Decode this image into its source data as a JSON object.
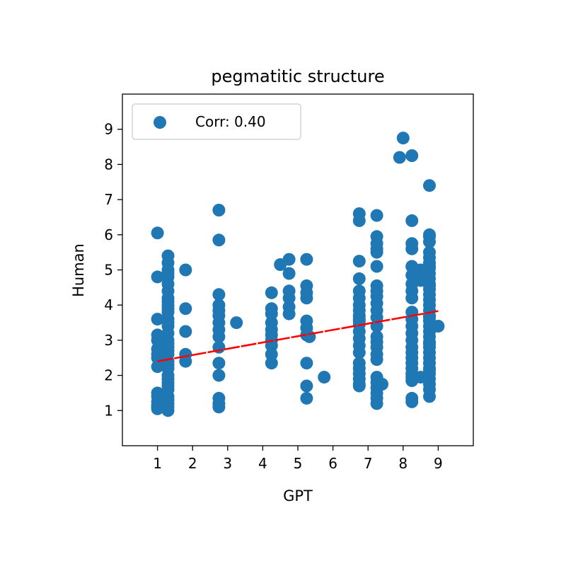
{
  "chart_data": {
    "type": "scatter",
    "title": "pegmatitic structure",
    "xlabel": "GPT",
    "ylabel": "Human",
    "xlim": [
      0,
      10
    ],
    "ylim": [
      0,
      10
    ],
    "xticks": [
      1,
      2,
      3,
      4,
      5,
      6,
      7,
      8,
      9
    ],
    "yticks": [
      1,
      2,
      3,
      4,
      5,
      6,
      7,
      8,
      9
    ],
    "grid": false,
    "legend": {
      "label": "Corr: 0.40",
      "placement": "top-left"
    },
    "colors": {
      "points": "#1f77b4",
      "trend": "#ff0000"
    },
    "trend_line": {
      "x": [
        1.0,
        9.0
      ],
      "y": [
        2.4,
        3.83
      ]
    },
    "points": {
      "x": [
        1.0,
        1.0,
        1.0,
        1.0,
        1.0,
        1.0,
        1.0,
        1.0,
        1.0,
        1.0,
        1.0,
        1.0,
        1.0,
        1.0,
        1.0,
        1.3,
        1.3,
        1.3,
        1.3,
        1.3,
        1.3,
        1.3,
        1.3,
        1.3,
        1.3,
        1.3,
        1.3,
        1.3,
        1.3,
        1.3,
        1.3,
        1.3,
        1.3,
        1.3,
        1.3,
        1.3,
        1.3,
        1.3,
        1.3,
        1.3,
        1.3,
        1.3,
        1.3,
        1.3,
        1.3,
        1.3,
        1.3,
        1.3,
        1.3,
        1.8,
        1.8,
        1.8,
        1.8,
        1.8,
        2.75,
        2.75,
        2.75,
        2.75,
        2.75,
        2.75,
        2.75,
        2.75,
        2.75,
        2.75,
        2.75,
        2.75,
        2.75,
        2.75,
        2.75,
        3.25,
        4.25,
        4.25,
        4.25,
        4.25,
        4.25,
        4.25,
        4.25,
        4.25,
        4.25,
        4.25,
        4.5,
        4.75,
        4.75,
        4.75,
        4.75,
        4.75,
        4.75,
        5.25,
        5.25,
        5.25,
        5.25,
        5.25,
        5.25,
        5.25,
        5.25,
        5.25,
        5.25,
        5.33,
        5.75,
        6.75,
        6.75,
        6.75,
        6.75,
        6.75,
        6.75,
        6.75,
        6.75,
        6.75,
        6.75,
        6.75,
        6.75,
        6.75,
        6.75,
        6.75,
        6.75,
        6.75,
        6.75,
        6.75,
        6.75,
        6.75,
        6.75,
        7.25,
        7.25,
        7.25,
        7.25,
        7.25,
        7.25,
        7.25,
        7.25,
        7.25,
        7.25,
        7.25,
        7.25,
        7.25,
        7.25,
        7.25,
        7.25,
        7.25,
        7.25,
        7.25,
        7.25,
        7.25,
        7.25,
        7.25,
        7.25,
        7.4,
        7.9,
        8.0,
        8.25,
        8.25,
        8.25,
        8.25,
        8.25,
        8.25,
        8.25,
        8.25,
        8.25,
        8.25,
        8.25,
        8.25,
        8.25,
        8.25,
        8.25,
        8.25,
        8.25,
        8.25,
        8.25,
        8.25,
        8.25,
        8.25,
        8.25,
        8.25,
        8.5,
        8.5,
        8.5,
        8.5,
        8.75,
        8.75,
        8.75,
        8.75,
        8.75,
        8.75,
        8.75,
        8.75,
        8.75,
        8.75,
        8.75,
        8.75,
        8.75,
        8.75,
        8.75,
        8.75,
        8.75,
        8.75,
        8.75,
        8.75,
        8.75,
        8.75,
        8.75,
        8.75,
        8.75,
        8.75,
        8.75,
        8.75,
        8.75,
        8.75,
        8.75,
        8.75,
        8.75,
        8.75,
        8.75,
        8.75,
        8.75,
        9.0
      ],
      "y": [
        6.05,
        4.8,
        3.6,
        3.15,
        2.75,
        2.5,
        2.25,
        1.5,
        1.25,
        1.15,
        1.1,
        3.0,
        2.6,
        1.4,
        1.05,
        5.4,
        5.2,
        5.0,
        4.8,
        4.6,
        4.4,
        4.2,
        4.0,
        3.8,
        3.6,
        3.4,
        3.2,
        3.0,
        2.8,
        2.6,
        2.4,
        2.2,
        2.0,
        1.8,
        1.6,
        1.4,
        1.2,
        1.0,
        4.1,
        3.5,
        2.9,
        2.3,
        1.7,
        1.3,
        4.9,
        3.9,
        2.7,
        1.9,
        1.1,
        5.0,
        3.9,
        3.25,
        2.6,
        2.4,
        6.7,
        5.85,
        4.3,
        4.0,
        3.85,
        3.7,
        3.5,
        3.3,
        3.1,
        2.8,
        2.35,
        2.0,
        1.35,
        1.2,
        1.1,
        3.5,
        4.35,
        3.9,
        3.75,
        3.5,
        3.3,
        3.15,
        3.0,
        2.85,
        2.6,
        2.35,
        5.15,
        5.3,
        4.9,
        4.4,
        4.2,
        3.95,
        3.75,
        5.3,
        4.55,
        4.35,
        4.2,
        3.55,
        3.35,
        3.15,
        2.35,
        1.7,
        1.35,
        3.1,
        1.95,
        6.6,
        6.4,
        5.25,
        4.75,
        4.4,
        4.2,
        4.0,
        3.85,
        3.7,
        3.55,
        3.45,
        3.25,
        3.05,
        2.85,
        2.65,
        2.35,
        2.2,
        2.05,
        1.9,
        1.75,
        1.7,
        3.6,
        6.55,
        5.95,
        5.75,
        5.6,
        5.5,
        5.1,
        4.55,
        4.4,
        4.25,
        4.05,
        3.85,
        3.65,
        3.4,
        3.1,
        2.95,
        2.8,
        2.6,
        2.45,
        1.95,
        1.8,
        1.65,
        1.5,
        1.35,
        1.2,
        1.75,
        8.2,
        8.75,
        8.25,
        6.4,
        5.75,
        5.6,
        5.1,
        4.85,
        4.6,
        4.4,
        4.2,
        3.4,
        3.2,
        3.0,
        2.8,
        2.65,
        2.5,
        2.35,
        2.2,
        2.05,
        1.95,
        1.85,
        1.35,
        1.25,
        3.6,
        3.8,
        5.0,
        4.85,
        4.7,
        1.95,
        7.4,
        6.0,
        5.8,
        5.5,
        5.35,
        5.2,
        5.05,
        4.9,
        4.75,
        4.6,
        4.45,
        4.3,
        4.15,
        4.0,
        3.85,
        3.7,
        3.55,
        3.4,
        3.25,
        3.1,
        2.95,
        2.8,
        2.65,
        2.5,
        2.35,
        2.2,
        2.05,
        1.9,
        1.75,
        1.6,
        1.4,
        3.65,
        2.9,
        2.15,
        4.55,
        5.1,
        5.95,
        3.4
      ]
    }
  }
}
